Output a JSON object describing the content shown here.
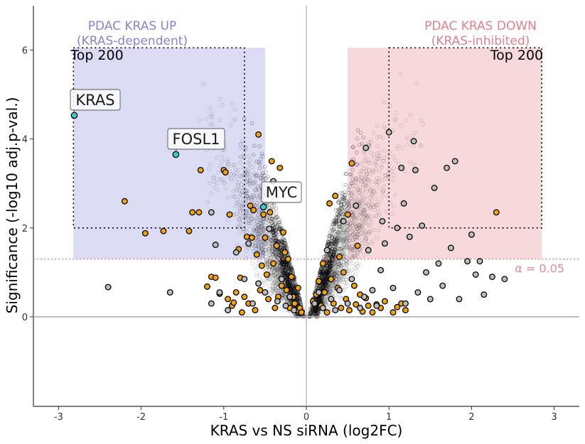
{
  "chart_data": {
    "type": "scatter",
    "xlabel": "KRAS vs NS siRNA (log2FC)",
    "ylabel": "Significance (-log10 adj.p-val.)",
    "xlim": [
      -3.3,
      3.3
    ],
    "ylim": [
      -2.0,
      7.0
    ],
    "x_ticks": [
      -3,
      -2,
      -1,
      0,
      1,
      2,
      3
    ],
    "y_ticks": [
      0,
      2,
      4,
      6
    ],
    "regions": [
      {
        "name": "up",
        "title_line1": "PDAC KRAS UP",
        "title_line2": "(KRAS-dependent)",
        "top_label": "Top 200",
        "color": "#8484d8",
        "fill": "#d9d9f2",
        "x_range": [
          -2.82,
          -0.5
        ],
        "y_range": [
          1.3,
          6.05
        ],
        "top_x_range": [
          -2.82,
          -0.75
        ],
        "top_y_range": [
          2.0,
          6.05
        ]
      },
      {
        "name": "down",
        "title_line1": "PDAC KRAS DOWN",
        "title_line2": "(KRAS-inhibited)",
        "top_label": "Top 200",
        "color": "#e5808a",
        "fill": "#f7d7da",
        "x_range": [
          0.5,
          2.85
        ],
        "y_range": [
          1.3,
          6.05
        ],
        "top_x_range": [
          1.0,
          2.85
        ],
        "top_y_range": [
          2.0,
          6.05
        ]
      }
    ],
    "threshold": {
      "label": "α = 0.05",
      "y": 1.3,
      "color": "#e58c96"
    },
    "highlighted_genes": [
      {
        "name": "KRAS",
        "x": -2.81,
        "y": 4.53,
        "color": "#2ad3d8"
      },
      {
        "name": "FOSL1",
        "x": -1.58,
        "y": 3.65,
        "color": "#2ad3d8"
      },
      {
        "name": "MYC",
        "x": -0.52,
        "y": 2.47,
        "color": "#2ad3d8"
      }
    ],
    "series": [
      {
        "name": "orange",
        "color": "#f5a300",
        "points": [
          [
            -2.2,
            2.6
          ],
          [
            -1.95,
            1.88
          ],
          [
            -1.73,
            1.93
          ],
          [
            -1.42,
            1.93
          ],
          [
            -1.38,
            2.35
          ],
          [
            -1.3,
            2.35
          ],
          [
            -1.28,
            3.3
          ],
          [
            -1.2,
            0.68
          ],
          [
            -1.15,
            0.9
          ],
          [
            -1.1,
            0.88
          ],
          [
            -1.05,
            0.52
          ],
          [
            -1.0,
            3.3
          ],
          [
            -0.98,
            3.25
          ],
          [
            -0.95,
            0.4
          ],
          [
            -0.93,
            2.3
          ],
          [
            -0.9,
            0.25
          ],
          [
            -0.88,
            0.32
          ],
          [
            -0.85,
            0.55
          ],
          [
            -0.82,
            1.52
          ],
          [
            -0.8,
            0.88
          ],
          [
            -0.78,
            0.1
          ],
          [
            -0.75,
            0.45
          ],
          [
            -0.72,
            1.8
          ],
          [
            -0.7,
            0.3
          ],
          [
            -0.68,
            2.5
          ],
          [
            -0.66,
            1.78
          ],
          [
            -0.64,
            2.4
          ],
          [
            -0.62,
            0.15
          ],
          [
            -0.6,
            1.4
          ],
          [
            -0.58,
            4.1
          ],
          [
            -0.56,
            0.6
          ],
          [
            -0.54,
            1.15
          ],
          [
            -0.52,
            2.3
          ],
          [
            -0.5,
            1.78
          ],
          [
            -0.48,
            0.95
          ],
          [
            -0.46,
            0.4
          ],
          [
            -0.44,
            2.35
          ],
          [
            -0.42,
            3.5
          ],
          [
            -0.4,
            1.2
          ],
          [
            -0.38,
            0.2
          ],
          [
            -0.36,
            1.6
          ],
          [
            -0.34,
            0.45
          ],
          [
            -0.32,
            3.35
          ],
          [
            -0.3,
            0.7
          ],
          [
            -0.28,
            1.9
          ],
          [
            -0.26,
            1.45
          ],
          [
            -0.24,
            0.6
          ],
          [
            -0.22,
            1.3
          ],
          [
            -0.2,
            0.2
          ],
          [
            -0.18,
            0.9
          ],
          [
            -0.16,
            0.45
          ],
          [
            -0.14,
            0.3
          ],
          [
            -0.12,
            0.15
          ],
          [
            -0.1,
            0.65
          ],
          [
            -0.08,
            0.2
          ],
          [
            -0.06,
            0.1
          ],
          [
            0.08,
            0.35
          ],
          [
            0.12,
            0.5
          ],
          [
            0.15,
            0.8
          ],
          [
            0.18,
            0.25
          ],
          [
            0.2,
            1.2
          ],
          [
            0.22,
            0.55
          ],
          [
            0.25,
            0.1
          ],
          [
            0.28,
            2.55
          ],
          [
            0.3,
            0.85
          ],
          [
            0.33,
            0.3
          ],
          [
            0.35,
            2.72
          ],
          [
            0.38,
            0.65
          ],
          [
            0.4,
            1.35
          ],
          [
            0.42,
            0.2
          ],
          [
            0.45,
            1.0
          ],
          [
            0.48,
            0.4
          ],
          [
            0.5,
            2.3
          ],
          [
            0.52,
            0.15
          ],
          [
            0.55,
            3.45
          ],
          [
            0.58,
            0.7
          ],
          [
            0.6,
            0.28
          ],
          [
            0.62,
            1.6
          ],
          [
            0.65,
            0.5
          ],
          [
            0.68,
            0.12
          ],
          [
            0.72,
            0.42
          ],
          [
            0.75,
            0.25
          ],
          [
            0.8,
            0.1
          ],
          [
            0.85,
            0.28
          ],
          [
            0.9,
            0.2
          ],
          [
            0.95,
            0.35
          ],
          [
            1.05,
            0.1
          ],
          [
            1.1,
            0.22
          ],
          [
            1.15,
            0.3
          ],
          [
            1.2,
            0.15
          ],
          [
            2.3,
            2.35
          ]
        ]
      },
      {
        "name": "gray",
        "color": "#bdbdbd",
        "points": [
          [
            -2.4,
            0.67
          ],
          [
            -1.65,
            0.55
          ],
          [
            -1.15,
            2.35
          ],
          [
            -1.15,
            0.3
          ],
          [
            -1.1,
            1.62
          ],
          [
            -1.05,
            0.55
          ],
          [
            -0.95,
            0.15
          ],
          [
            -0.85,
            1.45
          ],
          [
            -0.75,
            0.85
          ],
          [
            -0.7,
            1.65
          ],
          [
            -0.65,
            0.3
          ],
          [
            -0.58,
            0.75
          ],
          [
            -0.5,
            0.55
          ],
          [
            -0.45,
            1.98
          ],
          [
            -0.4,
            3.05
          ],
          [
            -0.35,
            0.35
          ],
          [
            -0.3,
            0.85
          ],
          [
            -0.25,
            0.25
          ],
          [
            -0.2,
            0.45
          ],
          [
            -0.15,
            0.15
          ],
          [
            0.1,
            0.3
          ],
          [
            0.15,
            0.55
          ],
          [
            0.2,
            0.2
          ],
          [
            0.25,
            1.5
          ],
          [
            0.3,
            0.4
          ],
          [
            0.35,
            0.15
          ],
          [
            0.4,
            0.6
          ],
          [
            0.45,
            2.15
          ],
          [
            0.5,
            0.3
          ],
          [
            0.55,
            0.85
          ],
          [
            0.6,
            2.5
          ],
          [
            0.65,
            0.2
          ],
          [
            0.7,
            0.45
          ],
          [
            0.72,
            3.8
          ],
          [
            0.75,
            1.5
          ],
          [
            0.8,
            0.6
          ],
          [
            0.85,
            0.25
          ],
          [
            0.9,
            1.05
          ],
          [
            0.92,
            2.15
          ],
          [
            0.95,
            1.65
          ],
          [
            1.0,
            4.15
          ],
          [
            1.05,
            0.65
          ],
          [
            1.1,
            2.0
          ],
          [
            1.15,
            3.35
          ],
          [
            1.18,
            2.55
          ],
          [
            1.2,
            0.3
          ],
          [
            1.25,
            1.8
          ],
          [
            1.3,
            3.95
          ],
          [
            1.32,
            3.3
          ],
          [
            1.35,
            0.55
          ],
          [
            1.4,
            2.05
          ],
          [
            1.45,
            1.0
          ],
          [
            1.5,
            0.4
          ],
          [
            1.55,
            2.9
          ],
          [
            1.6,
            1.2
          ],
          [
            1.65,
            0.7
          ],
          [
            1.7,
            3.35
          ],
          [
            1.75,
            1.55
          ],
          [
            1.8,
            3.5
          ],
          [
            1.85,
            0.4
          ],
          [
            1.95,
            1.25
          ],
          [
            2.0,
            1.85
          ],
          [
            2.05,
            0.95
          ],
          [
            2.1,
            1.25
          ],
          [
            2.15,
            0.5
          ],
          [
            2.25,
            0.9
          ],
          [
            2.4,
            0.85
          ]
        ]
      }
    ]
  }
}
